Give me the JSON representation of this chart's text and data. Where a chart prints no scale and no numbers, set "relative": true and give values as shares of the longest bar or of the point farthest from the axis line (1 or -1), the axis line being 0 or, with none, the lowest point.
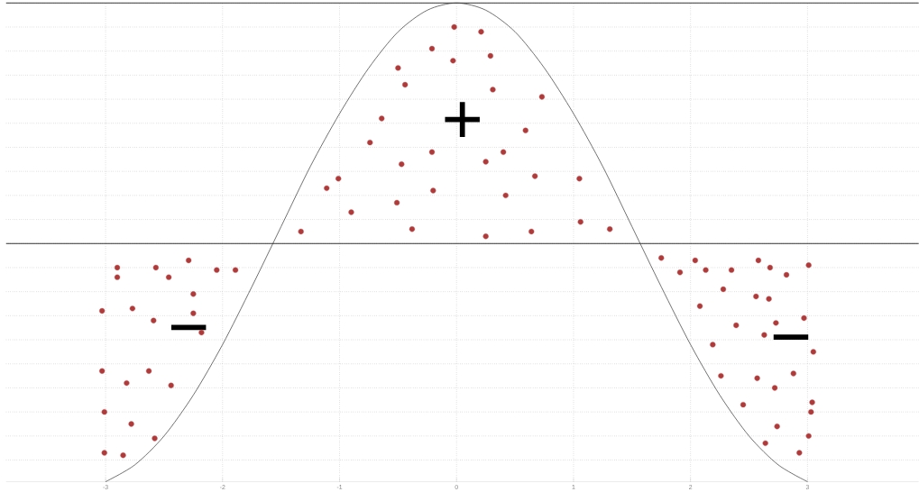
{
  "chart_data": {
    "type": "scatter",
    "relative": true,
    "xlim": [
      -3.85,
      3.95
    ],
    "xticks": [
      -3,
      -2,
      -1,
      0,
      1,
      2,
      3
    ],
    "grid": true,
    "series": [
      {
        "type": "line",
        "color": "#333333",
        "x": [
          -3,
          -2.75,
          -2.5,
          -2.25,
          -2,
          -1.75,
          -1.5,
          -1.25,
          -1,
          -0.75,
          -0.5,
          -0.25,
          0,
          0.25,
          0.5,
          0.75,
          1,
          1.25,
          1.5,
          1.75,
          2,
          2.25,
          2.5,
          2.75,
          3
        ],
        "values": [
          -0.99,
          -0.92,
          -0.8,
          -0.63,
          -0.42,
          -0.18,
          0.07,
          0.32,
          0.54,
          0.73,
          0.88,
          0.97,
          1,
          0.97,
          0.88,
          0.73,
          0.54,
          0.32,
          0.07,
          -0.18,
          -0.42,
          -0.63,
          -0.8,
          -0.92,
          -0.99
        ]
      },
      {
        "color": "#b03a3a",
        "x": [
          -2.9,
          -2.9,
          -2.57,
          -2.46,
          -2.29,
          -2.05,
          -1.89,
          -2.25,
          -3.03,
          -2.77,
          -2.59,
          -2.25,
          -2.18,
          -3.03,
          -2.63,
          -2.82,
          -2.44,
          -3.01,
          -2.78,
          -2.58,
          -3.01,
          -2.85,
          -0.02,
          0.21,
          -0.21,
          0.29,
          -0.03,
          -0.5,
          -0.44,
          0.31,
          0.73,
          -0.64,
          0.59,
          -0.74,
          -0.21,
          0.4,
          0.25,
          -0.47,
          -1.01,
          0.67,
          1.05,
          -1.11,
          -0.2,
          0.42,
          -0.51,
          -0.9,
          -1.33,
          -0.38,
          0.64,
          1.06,
          1.31,
          0.25,
          1.75,
          2.04,
          1.91,
          2.13,
          2.35,
          2.58,
          2.68,
          2.82,
          3.01,
          2.28,
          2.56,
          2.67,
          2.08,
          2.97,
          2.39,
          2.73,
          2.63,
          2.19,
          3.05,
          2.26,
          2.57,
          2.88,
          2.72,
          2.45,
          3.04,
          3.03,
          2.74,
          2.64,
          3.01,
          2.93
        ],
        "values": [
          -0.1,
          -0.14,
          -0.1,
          -0.14,
          -0.07,
          -0.11,
          -0.11,
          -0.21,
          -0.28,
          -0.27,
          -0.32,
          -0.29,
          -0.37,
          -0.53,
          -0.53,
          -0.58,
          -0.59,
          -0.7,
          -0.75,
          -0.81,
          -0.87,
          -0.88,
          0.9,
          0.88,
          0.81,
          0.78,
          0.76,
          0.73,
          0.66,
          0.64,
          0.61,
          0.52,
          0.47,
          0.42,
          0.38,
          0.38,
          0.34,
          0.33,
          0.27,
          0.28,
          0.27,
          0.23,
          0.22,
          0.2,
          0.17,
          0.13,
          0.05,
          0.06,
          0.05,
          0.09,
          0.06,
          0.03,
          -0.06,
          -0.07,
          -0.12,
          -0.11,
          -0.11,
          -0.07,
          -0.1,
          -0.13,
          -0.09,
          -0.19,
          -0.22,
          -0.23,
          -0.26,
          -0.31,
          -0.34,
          -0.33,
          -0.38,
          -0.42,
          -0.45,
          -0.55,
          -0.56,
          -0.54,
          -0.6,
          -0.67,
          -0.66,
          -0.7,
          -0.76,
          -0.83,
          -0.8,
          -0.87
        ]
      }
    ],
    "annotations": [
      "+",
      "−",
      "−"
    ]
  }
}
